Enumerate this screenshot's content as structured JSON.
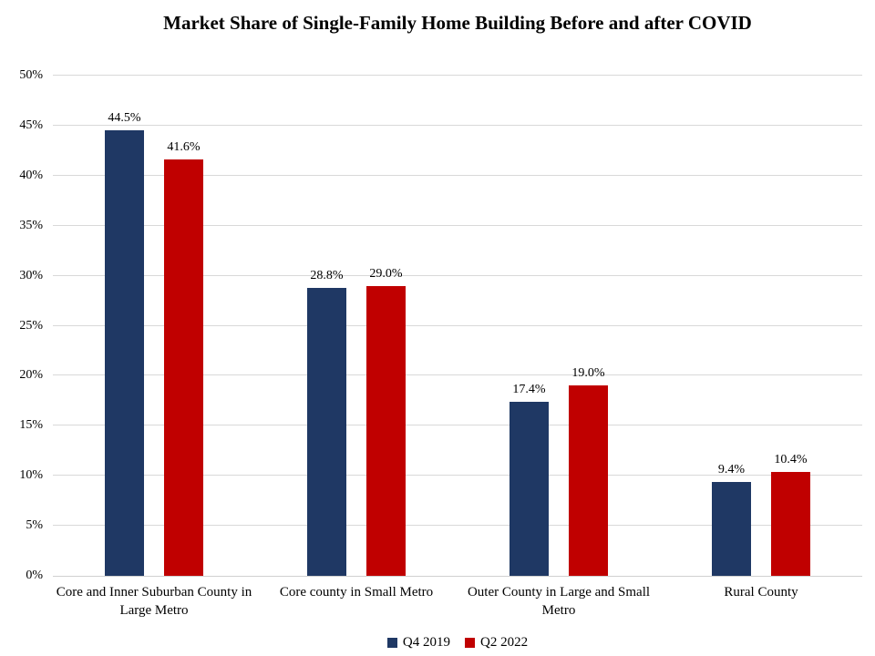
{
  "chart_data": {
    "type": "bar",
    "title": "Market Share of Single-Family Home Building Before and after COVID",
    "categories": [
      "Core and Inner Suburban County in Large Metro",
      "Core county in Small Metro",
      "Outer County in Large and Small Metro",
      "Rural County"
    ],
    "series": [
      {
        "name": "Q4 2019",
        "color": "#1F3864",
        "values": [
          44.5,
          28.8,
          17.4,
          9.4
        ],
        "labels": [
          "44.5%",
          "28.8%",
          "17.4%",
          "9.4%"
        ]
      },
      {
        "name": "Q2 2022",
        "color": "#C00000",
        "values": [
          41.6,
          29.0,
          19.0,
          10.4
        ],
        "labels": [
          "41.6%",
          "29.0%",
          "19.0%",
          "10.4%"
        ]
      }
    ],
    "ylim": [
      0,
      50
    ],
    "ytick_step": 5,
    "ytick_labels": [
      "0%",
      "5%",
      "10%",
      "15%",
      "20%",
      "25%",
      "30%",
      "35%",
      "40%",
      "45%",
      "50%"
    ],
    "grid": true,
    "gridline_color": "#D9D9D9",
    "legend_position": "bottom"
  }
}
